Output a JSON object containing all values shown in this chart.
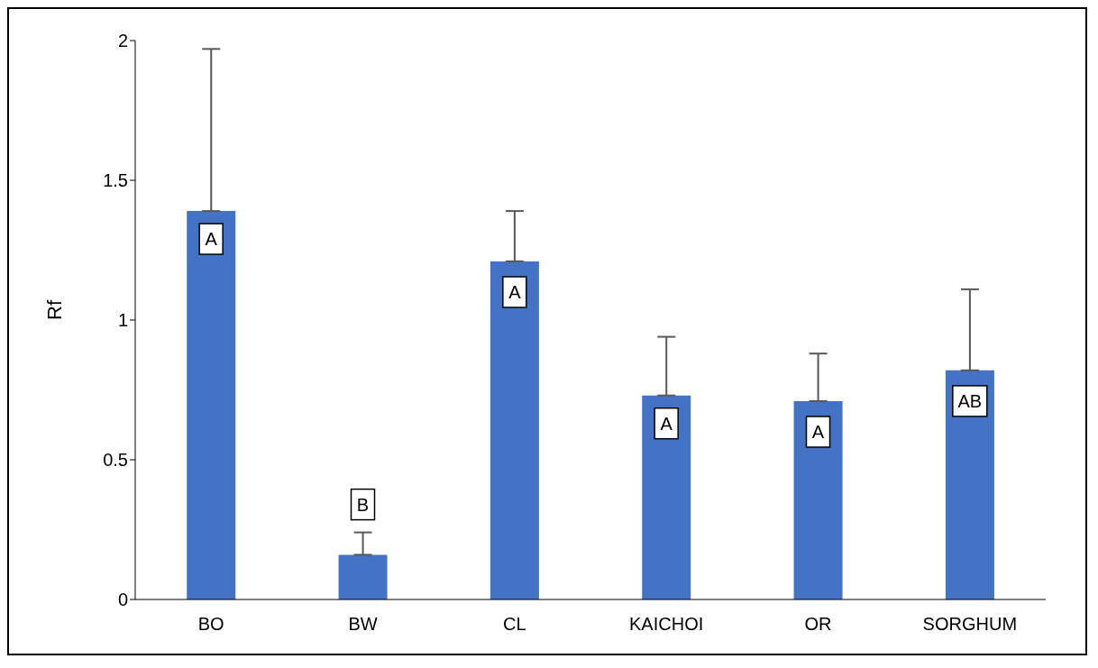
{
  "chart_data": {
    "type": "bar",
    "ylabel": "Rf",
    "categories": [
      "BO",
      "BW",
      "CL",
      "KAICHOI",
      "OR",
      "SORGHUM"
    ],
    "values": [
      1.39,
      0.16,
      1.21,
      0.73,
      0.71,
      0.82
    ],
    "errors": [
      [
        1.39,
        1.97
      ],
      [
        0.16,
        0.24
      ],
      [
        1.21,
        1.39
      ],
      [
        0.73,
        0.94
      ],
      [
        0.71,
        0.88
      ],
      [
        0.82,
        1.11
      ]
    ],
    "color": "#4472c4",
    "ylim": [
      0,
      2
    ],
    "yticks": [
      0,
      0.5,
      1,
      1.5,
      2
    ],
    "grid": false,
    "legend": false,
    "annotations": [
      {
        "text": "A",
        "x": "BO",
        "y": 1.29
      },
      {
        "text": "B",
        "x": "BW",
        "y": 0.34
      },
      {
        "text": "A",
        "x": "CL",
        "y": 1.1
      },
      {
        "text": "A",
        "x": "KAICHOI",
        "y": 0.63
      },
      {
        "text": "A",
        "x": "OR",
        "y": 0.6
      },
      {
        "text": "AB",
        "x": "SORGHUM",
        "y": 0.71
      }
    ]
  }
}
